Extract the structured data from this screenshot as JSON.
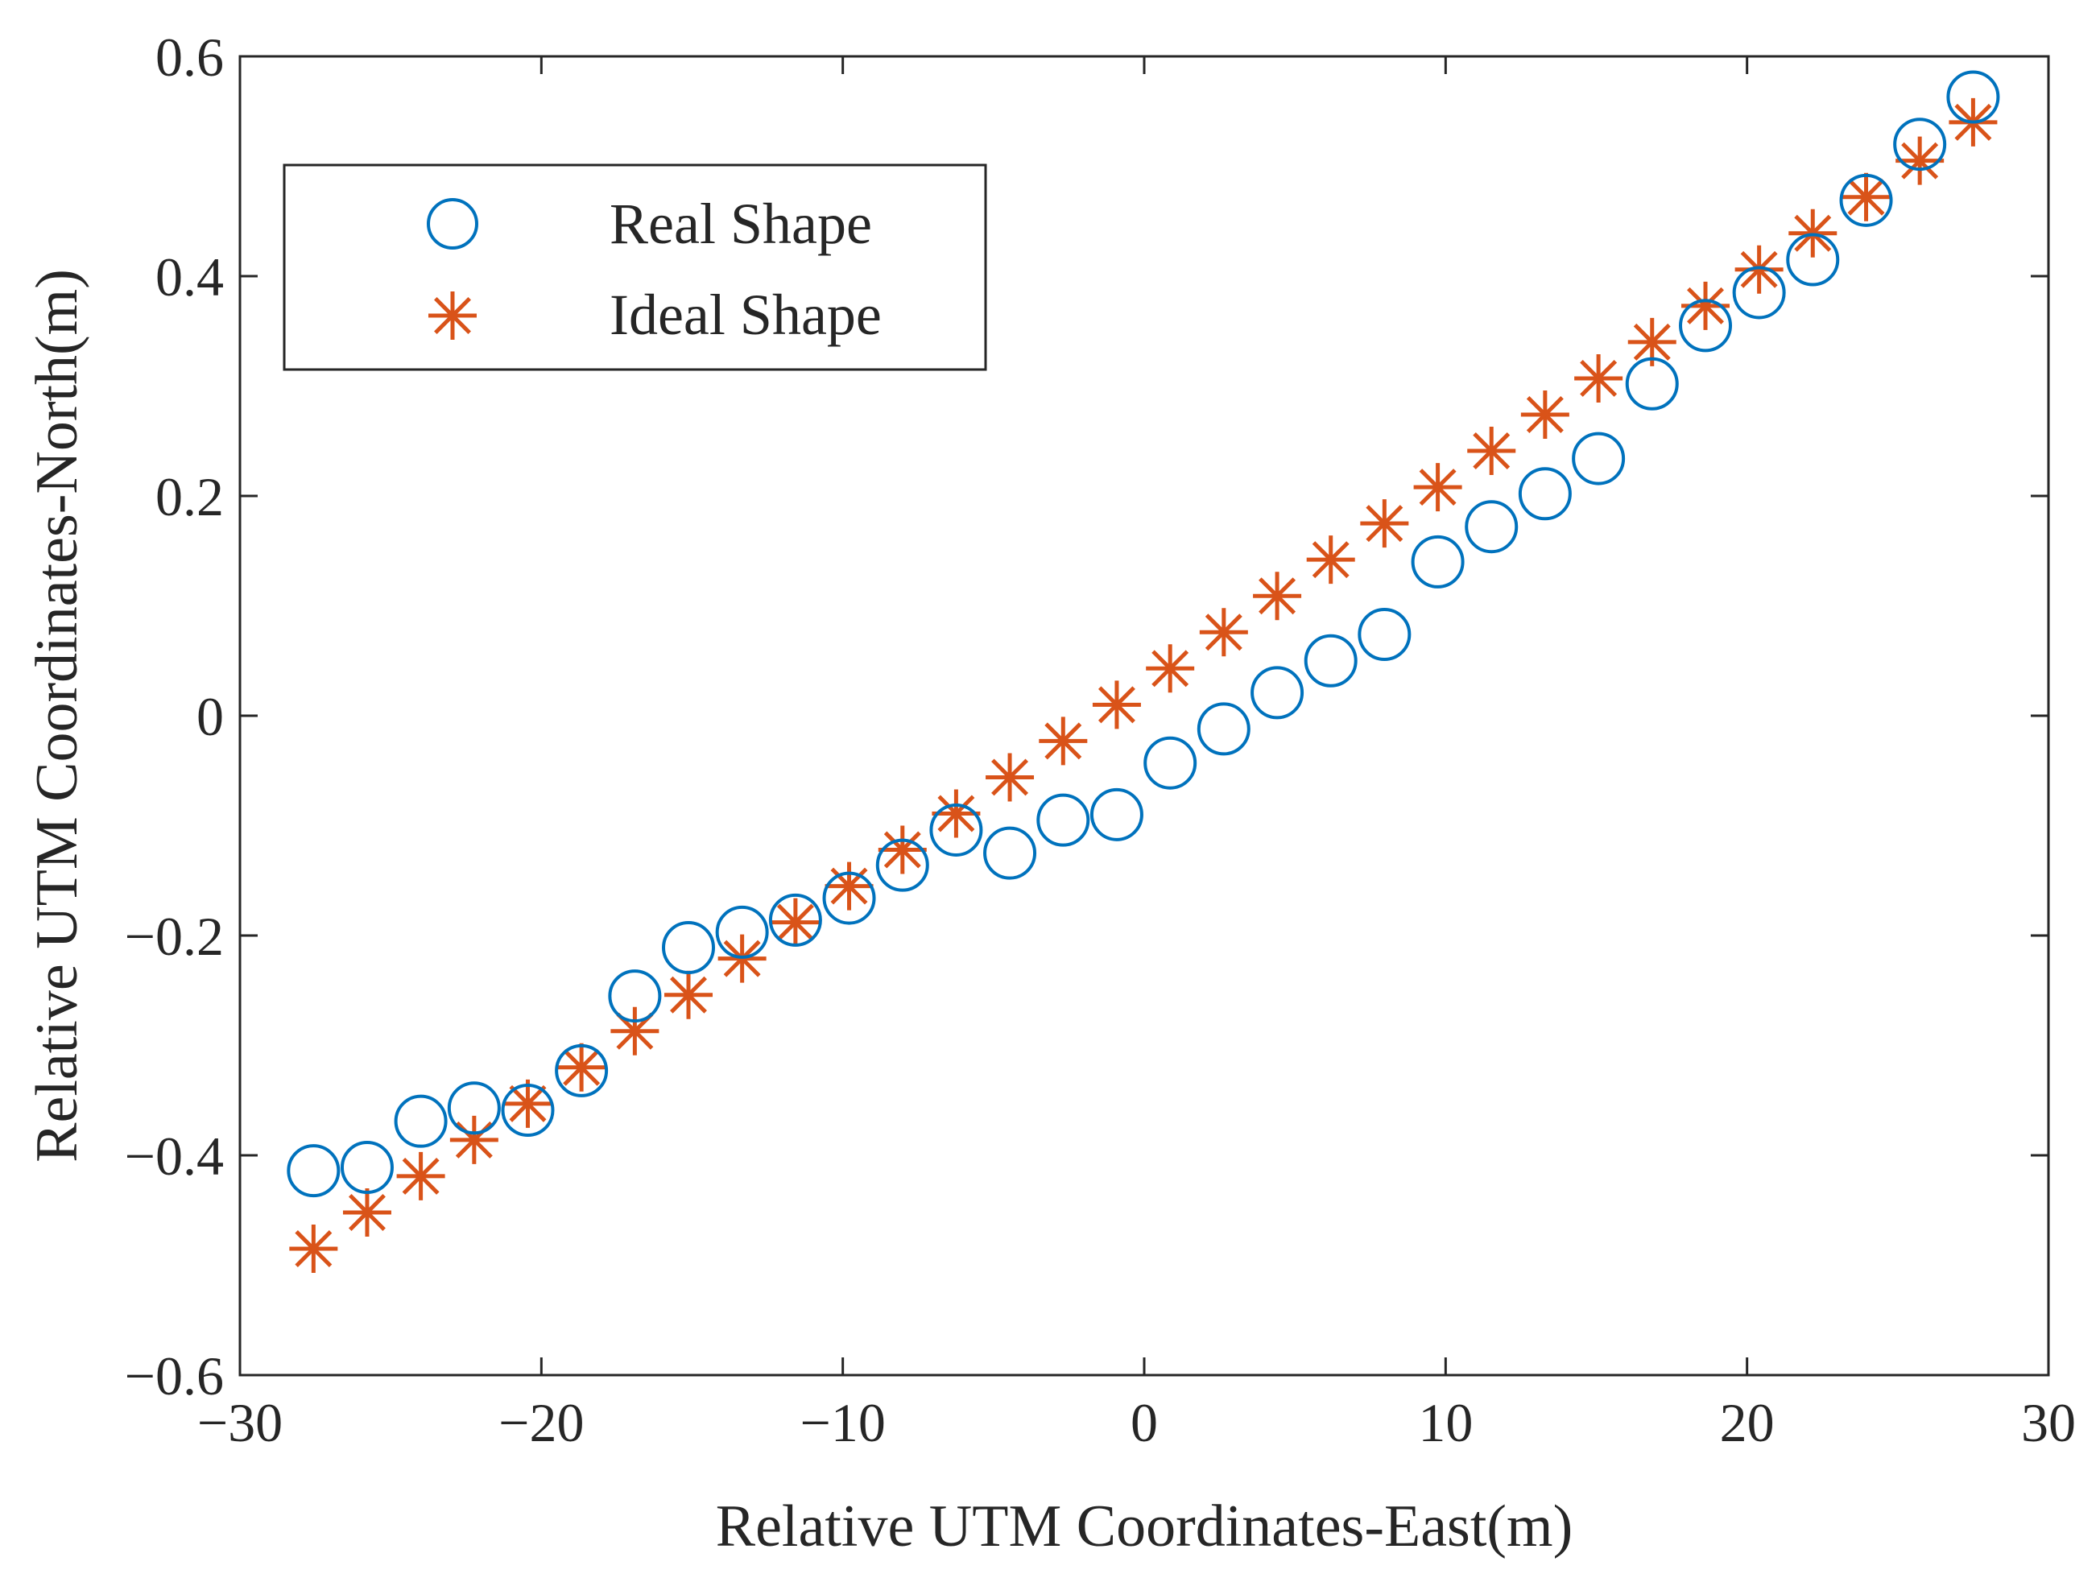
{
  "chart_data": {
    "type": "scatter",
    "title": "",
    "xlabel": "Relative UTM Coordinates-East(m)",
    "ylabel": "Relative UTM Coordinates-North(m)",
    "xlim": [
      -30,
      30
    ],
    "ylim": [
      -0.6,
      0.6
    ],
    "xticks": [
      -30,
      -20,
      -10,
      0,
      10,
      20,
      30
    ],
    "xtick_labels": [
      "−30",
      "−20",
      "−10",
      "0",
      "10",
      "20",
      "30"
    ],
    "yticks": [
      -0.6,
      -0.4,
      -0.2,
      0,
      0.2,
      0.4,
      0.6
    ],
    "ytick_labels": [
      "−0.6",
      "−0.4",
      "−0.2",
      "0",
      "0.2",
      "0.4",
      "0.6"
    ],
    "grid": false,
    "legend_position": "top-left",
    "series": [
      {
        "name": "Real Shape",
        "marker": "circle",
        "color": "#0072BD",
        "x": [
          -27.56,
          -25.78,
          -24.0,
          -22.23,
          -20.45,
          -18.67,
          -16.9,
          -15.12,
          -13.34,
          -11.57,
          -9.79,
          -8.02,
          -6.24,
          -4.46,
          -2.69,
          -0.91,
          0.86,
          2.64,
          4.41,
          6.19,
          7.97,
          9.74,
          11.52,
          13.3,
          15.07,
          16.85,
          18.62,
          20.4,
          22.18,
          23.95,
          25.73,
          27.5
        ],
        "y": [
          -0.414,
          -0.411,
          -0.369,
          -0.357,
          -0.359,
          -0.323,
          -0.255,
          -0.211,
          -0.197,
          -0.186,
          -0.166,
          -0.136,
          -0.104,
          -0.125,
          -0.095,
          -0.09,
          -0.043,
          -0.012,
          0.021,
          0.05,
          0.074,
          0.14,
          0.172,
          0.202,
          0.234,
          0.302,
          0.355,
          0.385,
          0.415,
          0.469,
          0.52,
          0.563
        ]
      },
      {
        "name": "Ideal Shape",
        "marker": "asterisk",
        "color": "#D95319",
        "x": [
          -27.56,
          -25.78,
          -24.0,
          -22.23,
          -20.45,
          -18.67,
          -16.9,
          -15.12,
          -13.34,
          -11.57,
          -9.79,
          -8.02,
          -6.24,
          -4.46,
          -2.69,
          -0.91,
          0.86,
          2.64,
          4.41,
          6.19,
          7.97,
          9.74,
          11.52,
          13.3,
          15.07,
          16.85,
          18.62,
          20.4,
          22.18,
          23.95,
          25.73,
          27.5
        ],
        "y": [
          -0.485,
          -0.452,
          -0.419,
          -0.386,
          -0.353,
          -0.32,
          -0.287,
          -0.254,
          -0.221,
          -0.188,
          -0.155,
          -0.122,
          -0.089,
          -0.056,
          -0.023,
          0.01,
          0.043,
          0.076,
          0.109,
          0.142,
          0.175,
          0.208,
          0.241,
          0.274,
          0.307,
          0.34,
          0.373,
          0.406,
          0.439,
          0.472,
          0.505,
          0.54
        ]
      }
    ]
  }
}
